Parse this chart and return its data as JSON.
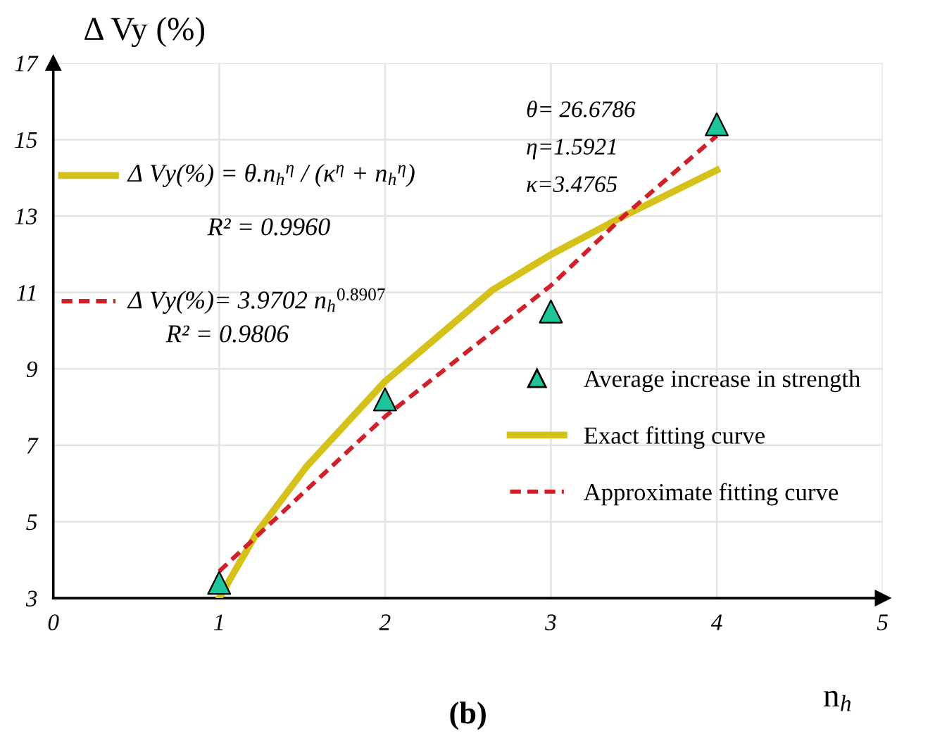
{
  "chart_data": {
    "type": "scatter",
    "xlabel": "n$_{h}$",
    "ylabel": "Δ Vy (%)",
    "xlim": [
      0,
      5
    ],
    "xticks": [
      0,
      1,
      2,
      3,
      4,
      5
    ],
    "ylim": [
      3,
      17
    ],
    "yticks": [
      3,
      5,
      7,
      9,
      11,
      13,
      15,
      17
    ],
    "grid": true,
    "legend": "right",
    "series": [
      {
        "name": "Average increase in strength",
        "marker": "triangle",
        "color": "#1ec59a",
        "x": [
          1,
          2,
          3,
          4
        ],
        "values": [
          3.4,
          8.2,
          10.5,
          15.4
        ]
      },
      {
        "name": "Exact fitting curve",
        "type": "line",
        "line_style": "solid",
        "color": "#d4c21b",
        "x": [
          1.0,
          1.23,
          1.53,
          2.0,
          2.65,
          3.0,
          3.44,
          4.0
        ],
        "values": [
          3.0,
          4.73,
          6.46,
          8.67,
          11.07,
          11.99,
          13.0,
          14.2
        ]
      },
      {
        "name": "Approximate fitting curve",
        "type": "line",
        "line_style": "dashed",
        "color": "#d0202a",
        "x": [
          1.0,
          2.0,
          3.0,
          3.44,
          4.0
        ],
        "values": [
          3.7,
          7.75,
          11.18,
          13.0,
          15.1
        ]
      }
    ],
    "annotations": [
      "Δ Vy(%) = θ.n$_{h}$$^{η}$ / (κ$^{η}$ + n$_{h}$$^{η}$)",
      "R² = 0.9960",
      "θ= 26.6786",
      "η=1.5921",
      "κ=3.4765",
      "Δ Vy(%)= 3.9702 n$_{h}$$^{0.8907}$",
      "R² = 0.9806",
      "(b)"
    ]
  }
}
